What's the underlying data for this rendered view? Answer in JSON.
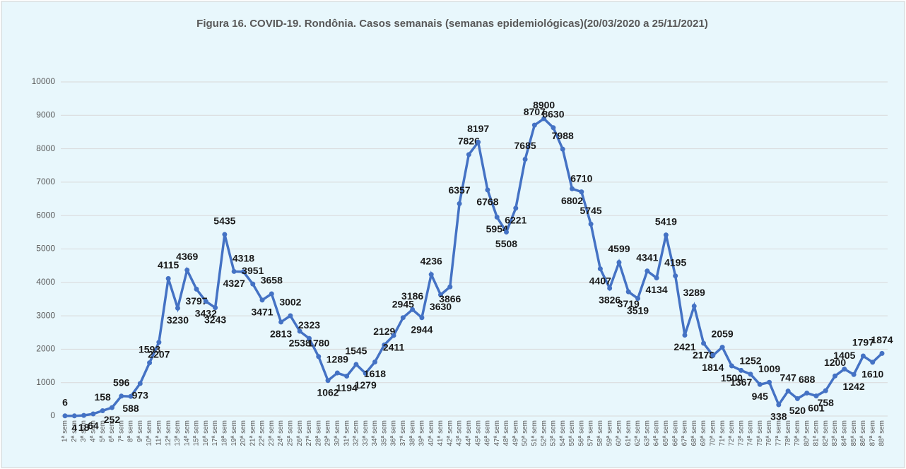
{
  "chart_data": {
    "type": "line",
    "title": "Figura 16. COVID-19. Rondônia. Casos semanais (semanas epidemiológicas)(20/03/2020 a 25/11/2021)",
    "categories": [
      "1ª sem",
      "2ª sem",
      "3ª sem",
      "4ª sem",
      "5ª sem",
      "6ª sem",
      "7ª sem",
      "8ª sem",
      "9ª sem",
      "10ª sem",
      "11ª sem",
      "12ª sem",
      "13ª sem",
      "14ª sem",
      "15ª sem",
      "16ª sem",
      "17ª sem",
      "18ª sem",
      "19ª sem",
      "20ª sem",
      "21ª sem",
      "22ª sem",
      "23ª sem",
      "24ª sem",
      "25ª sem",
      "26ª sem",
      "27ª sem",
      "28ª sem",
      "29ª sem",
      "30ª sem",
      "31ª sem",
      "32ª sem",
      "33ª sem",
      "34ª sem",
      "35ª sem",
      "36ª sem",
      "37ª sem",
      "38ª sem",
      "39ª sem",
      "40ª sem",
      "41ª sem",
      "42ª sem",
      "43ª sem",
      "44ª sem",
      "45ª sem",
      "46ª sem",
      "47ª sem",
      "48ª sem",
      "49ª sem",
      "50ª sem",
      "51ª sem",
      "52ª sem",
      "53ª sem",
      "54ª sem",
      "55ª sem",
      "56ª sem",
      "57ª sem",
      "58ª sem",
      "59ª sem",
      "60ª sem",
      "61ª sem",
      "62ª sem",
      "63ª sem",
      "64ª sem",
      "65ª sem",
      "66ª sem",
      "67ª sem",
      "68ª sem",
      "69ª sem",
      "70ª sem",
      "71ª sem",
      "72ª sem",
      "73ª sem",
      "74ª sem",
      "75ª sem",
      "76ª sem",
      "77ª sem",
      "78ª sem",
      "79ª sem",
      "80ª sem",
      "81ª sem",
      "82ª sem",
      "83ª sem",
      "84ª sem",
      "85ª sem",
      "86ª sem",
      "87ª sem",
      "88ª sem"
    ],
    "values": [
      6,
      4,
      18,
      64,
      158,
      252,
      596,
      588,
      973,
      1593,
      2207,
      4115,
      3230,
      4369,
      3797,
      3432,
      3243,
      5435,
      4327,
      4318,
      3951,
      3471,
      3658,
      2813,
      3002,
      2538,
      2323,
      1780,
      1062,
      1289,
      1194,
      1545,
      1279,
      1618,
      2129,
      2411,
      2945,
      3186,
      2944,
      4236,
      3630,
      3866,
      6357,
      7826,
      8197,
      6768,
      5954,
      5508,
      6221,
      7685,
      8707,
      8900,
      8630,
      7988,
      6802,
      6710,
      5745,
      4407,
      3826,
      4599,
      3719,
      3519,
      4341,
      4134,
      5419,
      4195,
      2421,
      3289,
      2178,
      1814,
      2059,
      1500,
      1367,
      1252,
      945,
      1009,
      338,
      747,
      520,
      688,
      601,
      758,
      1200,
      1405,
      1242,
      1797,
      1610,
      1874
    ],
    "color": "#4472c4",
    "ylim": [
      0,
      10000
    ],
    "yticks": [
      0,
      1000,
      2000,
      3000,
      4000,
      5000,
      6000,
      7000,
      8000,
      9000,
      10000
    ],
    "grid": true
  }
}
